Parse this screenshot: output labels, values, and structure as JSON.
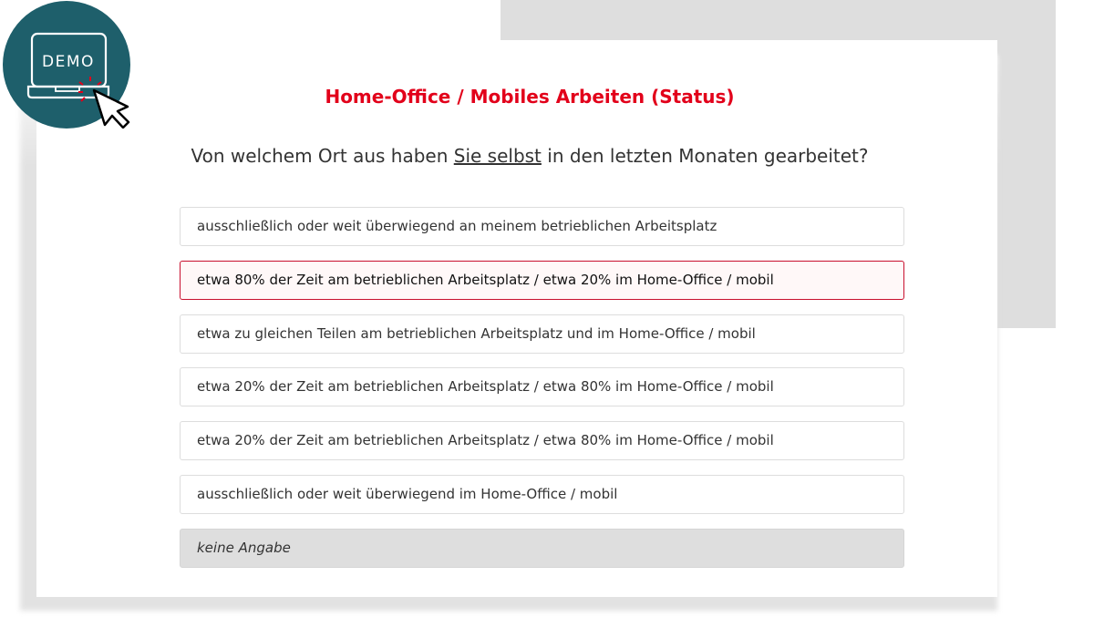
{
  "badge": {
    "text": "DEMO",
    "circle_color": "#1e5f6b"
  },
  "title": "Home-Office / Mobiles Arbeiten (Status)",
  "question": {
    "before": "Von welchem Ort aus haben ",
    "emphasis": "Sie selbst",
    "after": " in den letzten Monaten gearbeitet?"
  },
  "options": [
    {
      "label": "ausschließlich oder weit überwiegend an meinem betrieblichen Arbeitsplatz",
      "selected": false
    },
    {
      "label": "etwa 80% der Zeit am betrieblichen Arbeitsplatz / etwa 20% im Home-Office / mobil",
      "selected": true
    },
    {
      "label": "etwa zu gleichen Teilen am betrieblichen Arbeitsplatz und im Home-Office / mobil",
      "selected": false
    },
    {
      "label": "etwa 20% der Zeit am betrieblichen Arbeitsplatz / etwa 80% im Home-Office / mobil",
      "selected": false
    },
    {
      "label": "etwa 20% der Zeit am betrieblichen Arbeitsplatz / etwa 80% im Home-Office / mobil",
      "selected": false
    },
    {
      "label": "ausschließlich oder weit überwiegend im Home-Office / mobil",
      "selected": false
    },
    {
      "label": "keine Angabe",
      "selected": false
    }
  ],
  "colors": {
    "accent": "#e2001a",
    "selected_border": "#c8102e"
  }
}
